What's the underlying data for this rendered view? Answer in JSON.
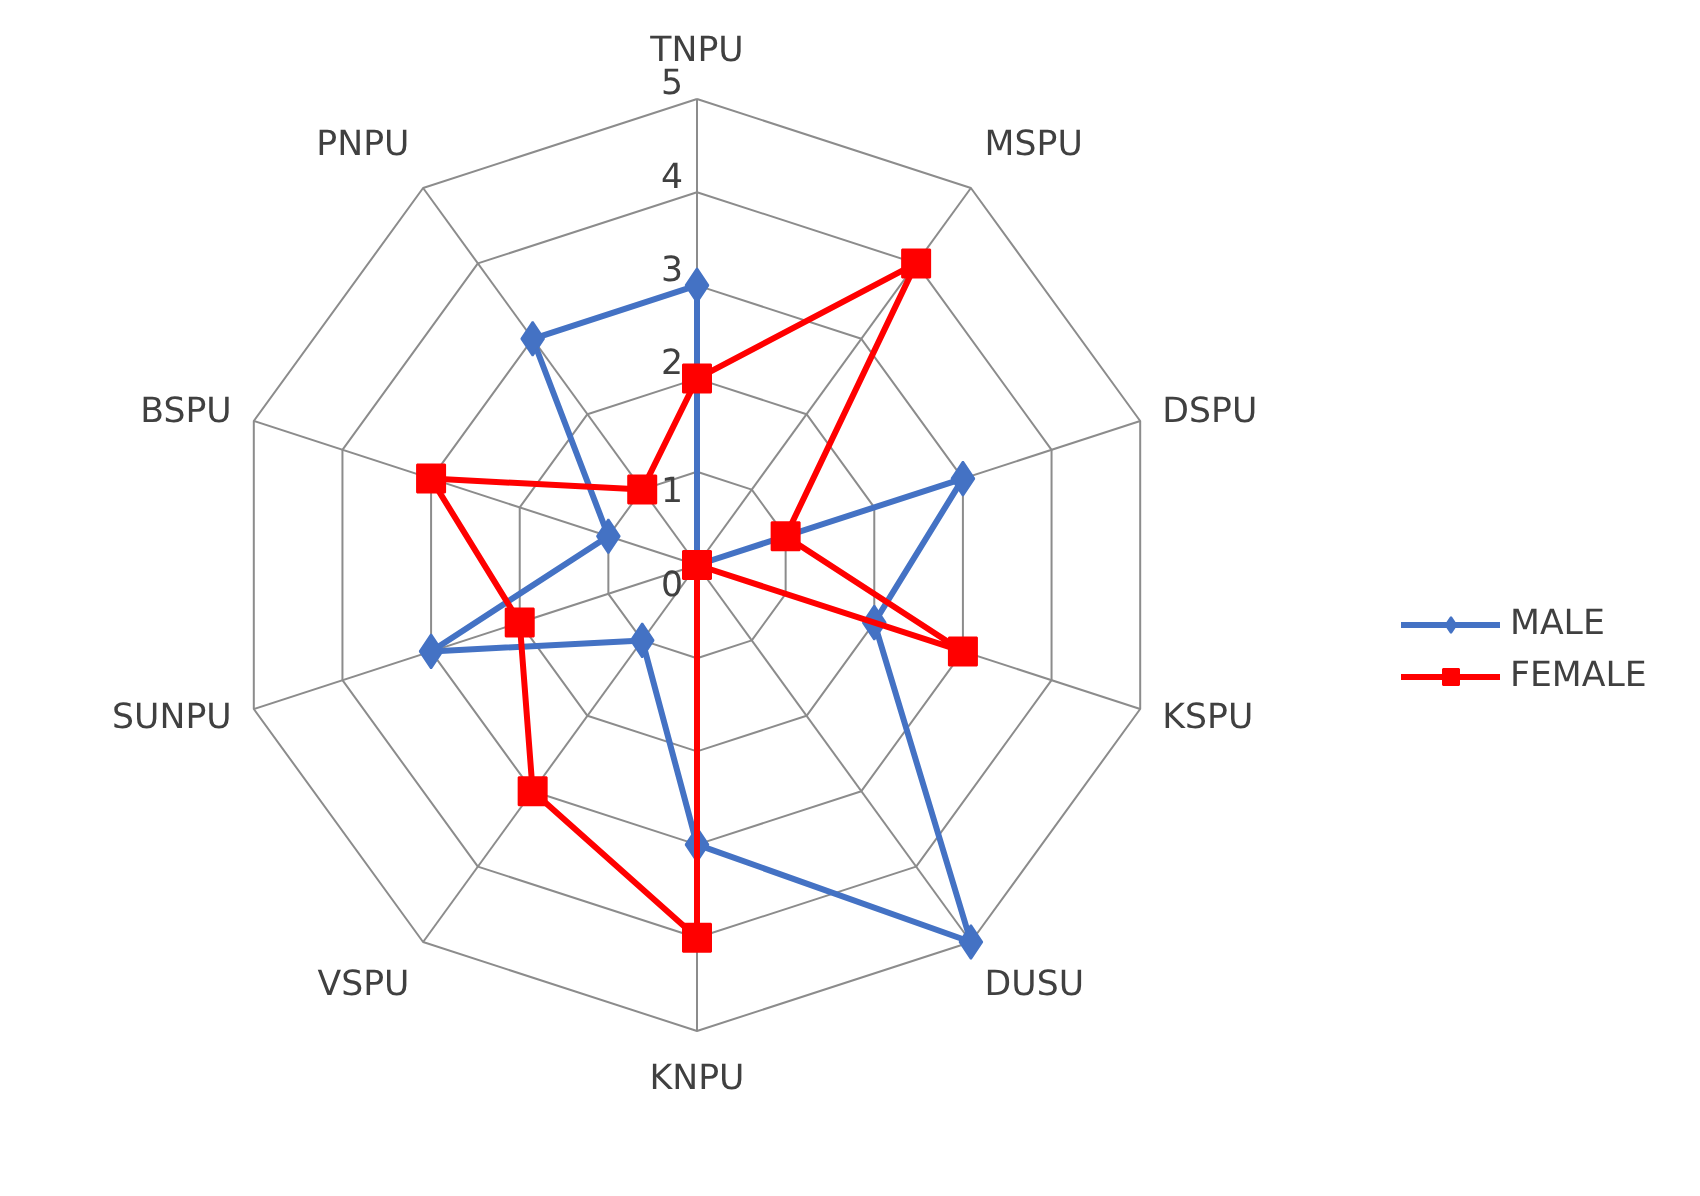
{
  "chart_data": {
    "type": "radar",
    "categories": [
      "TNPU",
      "MSPU",
      "DSPU",
      "KSPU",
      "DUSU",
      "KNPU",
      "VSPU",
      "SUNPU",
      "BSPU",
      "PNPU"
    ],
    "series": [
      {
        "name": "MALE",
        "color": "#4472c4",
        "marker": "diamond",
        "values": [
          3,
          0,
          3,
          2,
          5,
          3,
          1,
          3,
          1,
          3
        ]
      },
      {
        "name": "FEMALE",
        "color": "#ff0000",
        "marker": "square",
        "values": [
          2,
          4,
          1,
          3,
          0,
          4,
          3,
          2,
          3,
          1
        ]
      }
    ],
    "ylim": [
      0,
      5
    ],
    "yticks": [
      0,
      1,
      2,
      3,
      4,
      5
    ],
    "grid": true,
    "legend": "right"
  }
}
